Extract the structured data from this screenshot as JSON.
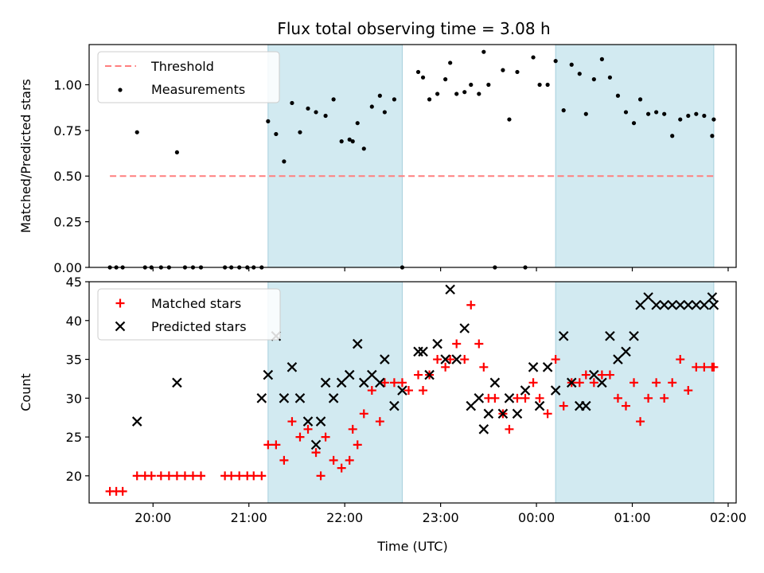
{
  "chart_data": [
    {
      "type": "scatter",
      "title": "Flux total observing time = 3.08 h",
      "xlabel": "",
      "ylabel": "Matched/Predicted stars",
      "xlim": [
        "19:20",
        "02:05"
      ],
      "ylim": [
        0,
        1.22
      ],
      "yticks": [
        0.0,
        0.25,
        0.5,
        0.75,
        1.0
      ],
      "ytick_labels": [
        "0.00",
        "0.25",
        "0.50",
        "0.75",
        "1.00"
      ],
      "grid": false,
      "legend": "top-left",
      "shaded_intervals": [
        [
          "21:12",
          "22:36"
        ],
        [
          "00:12",
          "01:51"
        ]
      ],
      "shade_color": "#add8e6",
      "threshold": {
        "name": "Threshold",
        "value": 0.5,
        "x_range": [
          "19:33",
          "01:51"
        ],
        "color": "#ff7f7f"
      },
      "series": [
        {
          "name": "Measurements",
          "color": "#000000",
          "marker": "dot",
          "x": [
            "19:33",
            "19:37",
            "19:41",
            "19:50",
            "19:55",
            "19:59",
            "20:05",
            "20:10",
            "20:15",
            "20:20",
            "20:25",
            "20:30",
            "20:45",
            "20:49",
            "20:54",
            "20:59",
            "21:03",
            "21:08",
            "21:12",
            "21:17",
            "21:22",
            "21:27",
            "21:32",
            "21:37",
            "21:42",
            "21:48",
            "21:53",
            "21:58",
            "22:03",
            "22:05",
            "22:08",
            "22:12",
            "22:17",
            "22:22",
            "22:25",
            "22:31",
            "22:36",
            "22:46",
            "22:49",
            "22:53",
            "22:58",
            "23:03",
            "23:06",
            "23:10",
            "23:15",
            "23:19",
            "23:24",
            "23:27",
            "23:30",
            "23:34",
            "23:39",
            "23:43",
            "23:48",
            "23:53",
            "23:58",
            "24:02",
            "24:07",
            "24:12",
            "24:17",
            "24:22",
            "24:27",
            "24:31",
            "24:36",
            "24:41",
            "24:46",
            "24:51",
            "24:56",
            "25:01",
            "25:05",
            "25:10",
            "25:15",
            "25:20",
            "25:25",
            "25:30",
            "25:35",
            "25:40",
            "25:45",
            "25:50",
            "25:51"
          ],
          "y": [
            0,
            0,
            0,
            0.74,
            0,
            0,
            0,
            0,
            0.63,
            0,
            0,
            0,
            0,
            0,
            0,
            0,
            0,
            0,
            0.8,
            0.73,
            0.58,
            0.9,
            0.74,
            0.87,
            0.85,
            0.83,
            0.92,
            0.69,
            0.7,
            0.69,
            0.79,
            0.65,
            0.88,
            0.94,
            0.85,
            0.92,
            0,
            1.07,
            1.04,
            0.92,
            0.95,
            1.03,
            1.12,
            0.95,
            0.96,
            1.0,
            0.95,
            1.18,
            1.0,
            0,
            1.08,
            0.81,
            1.07,
            0,
            1.15,
            1.0,
            1.0,
            1.13,
            0.86,
            1.11,
            1.06,
            0.84,
            1.03,
            1.14,
            1.04,
            0.94,
            0.85,
            0.79,
            0.92,
            0.84,
            0.85,
            0.84,
            0.72,
            0.81,
            0.83,
            0.84,
            0.83,
            0.72,
            0.81
          ]
        }
      ]
    },
    {
      "type": "scatter",
      "title": "",
      "xlabel": "Time (UTC)",
      "ylabel": "Count",
      "xlim": [
        "19:20",
        "02:05"
      ],
      "xticks": [
        "20:00",
        "21:00",
        "22:00",
        "23:00",
        "00:00",
        "01:00",
        "02:00"
      ],
      "ylim": [
        16.5,
        45
      ],
      "yticks": [
        20,
        25,
        30,
        35,
        40,
        45
      ],
      "grid": false,
      "legend": "top-left",
      "shaded_intervals": [
        [
          "21:12",
          "22:36"
        ],
        [
          "00:12",
          "01:51"
        ]
      ],
      "shade_color": "#add8e6",
      "series": [
        {
          "name": "Matched stars",
          "color": "#ff0000",
          "marker": "plus",
          "x": [
            "19:33",
            "19:37",
            "19:41",
            "19:50",
            "19:55",
            "19:59",
            "20:05",
            "20:10",
            "20:15",
            "20:20",
            "20:25",
            "20:30",
            "20:45",
            "20:49",
            "20:54",
            "20:59",
            "21:03",
            "21:08",
            "21:12",
            "21:17",
            "21:22",
            "21:27",
            "21:32",
            "21:37",
            "21:42",
            "21:45",
            "21:48",
            "21:53",
            "21:58",
            "22:03",
            "22:05",
            "22:08",
            "22:12",
            "22:17",
            "22:22",
            "22:25",
            "22:31",
            "22:36",
            "22:40",
            "22:46",
            "22:49",
            "22:53",
            "22:58",
            "23:03",
            "23:06",
            "23:10",
            "23:15",
            "23:19",
            "23:24",
            "23:27",
            "23:30",
            "23:34",
            "23:39",
            "23:43",
            "23:48",
            "23:53",
            "23:58",
            "24:02",
            "24:07",
            "24:12",
            "24:17",
            "24:22",
            "24:27",
            "24:31",
            "24:36",
            "24:41",
            "24:46",
            "24:51",
            "24:56",
            "25:01",
            "25:05",
            "25:10",
            "25:15",
            "25:20",
            "25:25",
            "25:30",
            "25:35",
            "25:40",
            "25:45",
            "25:50",
            "25:51"
          ],
          "y": [
            18,
            18,
            18,
            20,
            20,
            20,
            20,
            20,
            20,
            20,
            20,
            20,
            20,
            20,
            20,
            20,
            20,
            20,
            24,
            24,
            22,
            27,
            25,
            26,
            23,
            20,
            25,
            22,
            21,
            22,
            26,
            24,
            28,
            31,
            27,
            32,
            32,
            32,
            31,
            33,
            31,
            33,
            35,
            34,
            35,
            37,
            35,
            42,
            37,
            34,
            30,
            30,
            28,
            26,
            30,
            30,
            32,
            30,
            28,
            35,
            29,
            32,
            32,
            33,
            32,
            33,
            33,
            30,
            29,
            32,
            27,
            30,
            32,
            30,
            32,
            35,
            31,
            34,
            34,
            34,
            34
          ]
        },
        {
          "name": "Predicted stars",
          "color": "#000000",
          "marker": "x",
          "x": [
            "19:50",
            "20:15",
            "21:08",
            "21:12",
            "21:17",
            "21:22",
            "21:27",
            "21:32",
            "21:37",
            "21:42",
            "21:45",
            "21:48",
            "21:53",
            "21:58",
            "22:03",
            "22:08",
            "22:12",
            "22:17",
            "22:22",
            "22:25",
            "22:31",
            "22:36",
            "22:46",
            "22:49",
            "22:53",
            "22:58",
            "23:03",
            "23:06",
            "23:10",
            "23:15",
            "23:19",
            "23:24",
            "23:27",
            "23:30",
            "23:34",
            "23:39",
            "23:43",
            "23:48",
            "23:53",
            "23:58",
            "24:02",
            "24:07",
            "24:12",
            "24:17",
            "24:22",
            "24:27",
            "24:31",
            "24:36",
            "24:41",
            "24:46",
            "24:51",
            "24:56",
            "25:01",
            "25:05",
            "25:10",
            "25:15",
            "25:20",
            "25:25",
            "25:30",
            "25:35",
            "25:40",
            "25:45",
            "25:50",
            "25:51"
          ],
          "y": [
            27,
            32,
            30,
            33,
            38,
            30,
            34,
            30,
            27,
            24,
            27,
            32,
            30,
            32,
            33,
            37,
            32,
            33,
            32,
            35,
            29,
            31,
            36,
            36,
            33,
            37,
            35,
            44,
            35,
            39,
            29,
            30,
            26,
            28,
            32,
            28,
            30,
            28,
            31,
            34,
            29,
            34,
            31,
            38,
            32,
            29,
            29,
            33,
            32,
            38,
            35,
            36,
            38,
            42,
            43,
            42,
            42,
            42,
            42,
            42,
            42,
            42,
            43,
            42
          ]
        }
      ]
    }
  ]
}
